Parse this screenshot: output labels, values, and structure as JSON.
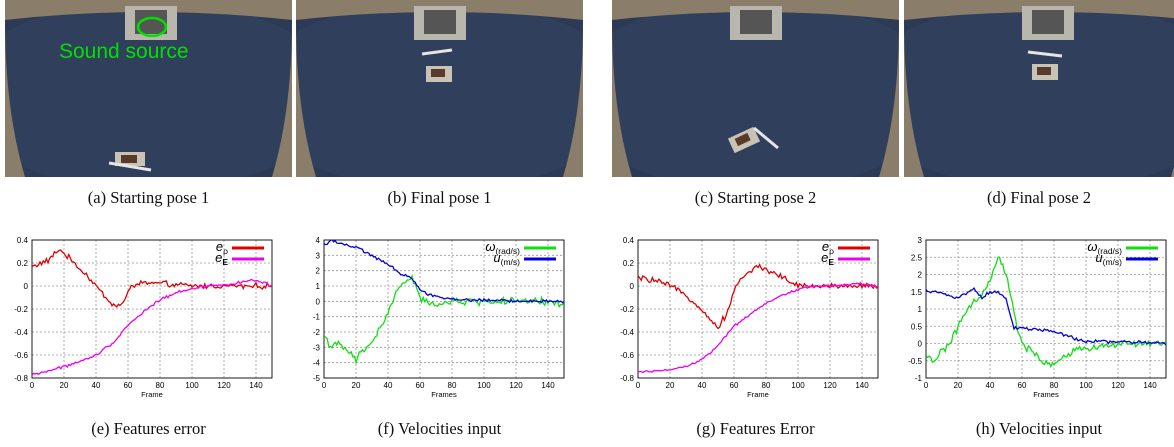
{
  "captions": {
    "a": "(a) Starting pose 1",
    "b": "(b) Final pose 1",
    "c": "(c) Starting pose 2",
    "d": "(d) Final pose 2",
    "e": "(e) Features error",
    "f": "(f) Velocities input",
    "g": "(g) Features Error",
    "h": "(h) Velocities input"
  },
  "annotation": {
    "sound_source": "Sound source",
    "color": "#00e000"
  },
  "colors": {
    "red": "#e00000",
    "magenta": "#ee00ee",
    "green": "#11dd11",
    "blue": "#0000dd",
    "carpet": "#2c3a55"
  },
  "chart_data": [
    {
      "id": "e",
      "type": "line",
      "xlabel": "Frame",
      "xlim": [
        0,
        150
      ],
      "ylim": [
        -0.8,
        0.4
      ],
      "xticks": [
        0,
        20,
        40,
        60,
        80,
        100,
        120,
        140
      ],
      "yticks": [
        -0.8,
        -0.6,
        -0.4,
        -0.2,
        0,
        0.2,
        0.4
      ],
      "yticklabels": [
        "-0.8",
        "-0.6",
        "-0.4",
        "-0.2",
        "0",
        "0.2",
        "0.4"
      ],
      "legend_position": "top-right",
      "series": [
        {
          "name": "e_ρ",
          "color": "#e00000",
          "noise": 0.03,
          "x": [
            0,
            10,
            17,
            25,
            35,
            45,
            52,
            57,
            62,
            70,
            80,
            90,
            100,
            110,
            120,
            130,
            140,
            150
          ],
          "y": [
            0.17,
            0.22,
            0.32,
            0.22,
            0.08,
            -0.08,
            -0.18,
            -0.15,
            0.0,
            0.03,
            0.02,
            0.01,
            0.0,
            0.0,
            0.0,
            0.0,
            0.0,
            0.0
          ]
        },
        {
          "name": "e_E",
          "color": "#ee00ee",
          "noise": 0.015,
          "x": [
            0,
            10,
            20,
            30,
            40,
            50,
            55,
            60,
            70,
            80,
            90,
            100,
            110,
            120,
            130,
            140,
            150
          ],
          "y": [
            -0.77,
            -0.74,
            -0.7,
            -0.66,
            -0.6,
            -0.5,
            -0.42,
            -0.34,
            -0.22,
            -0.12,
            -0.06,
            -0.02,
            0.0,
            0.01,
            0.03,
            0.05,
            0.0
          ]
        }
      ]
    },
    {
      "id": "f",
      "type": "line",
      "xlabel": "Frames",
      "xlim": [
        0,
        150
      ],
      "ylim": [
        -5,
        4
      ],
      "xticks": [
        0,
        20,
        40,
        60,
        80,
        100,
        120,
        140
      ],
      "yticks": [
        -5,
        -4,
        -3,
        -2,
        -1,
        0,
        1,
        2,
        3,
        4
      ],
      "yticklabels": [
        "-5",
        "-4",
        "-3",
        "-2",
        "-1",
        "0",
        "1",
        "2",
        "3",
        "4"
      ],
      "legend_position": "top-right",
      "series": [
        {
          "name": "ω(rad/s)",
          "color": "#11dd11",
          "noise": 0.3,
          "x": [
            0,
            5,
            10,
            20,
            25,
            30,
            35,
            40,
            45,
            50,
            55,
            60,
            65,
            75,
            90,
            110,
            130,
            150
          ],
          "y": [
            -2.2,
            -3.0,
            -2.8,
            -3.8,
            -3.2,
            -2.6,
            -1.8,
            -0.8,
            0.6,
            1.2,
            1.6,
            0.2,
            -0.2,
            -0.1,
            0.0,
            0.0,
            0.0,
            -0.1
          ]
        },
        {
          "name": "u(m/s)",
          "color": "#0000dd",
          "noise": 0.12,
          "x": [
            0,
            5,
            10,
            20,
            30,
            40,
            45,
            50,
            55,
            60,
            65,
            75,
            90,
            110,
            130,
            150
          ],
          "y": [
            3.7,
            4.0,
            3.8,
            3.5,
            3.0,
            2.4,
            2.0,
            1.7,
            1.5,
            0.8,
            0.5,
            0.2,
            0.1,
            0.05,
            0.0,
            0.0
          ]
        }
      ]
    },
    {
      "id": "g",
      "type": "line",
      "xlabel": "Frame",
      "xlim": [
        0,
        150
      ],
      "ylim": [
        -0.8,
        0.4
      ],
      "xticks": [
        0,
        20,
        40,
        60,
        80,
        100,
        120,
        140
      ],
      "yticks": [
        -0.8,
        -0.6,
        -0.4,
        -0.2,
        0,
        0.2,
        0.4
      ],
      "yticklabels": [
        "-0.8",
        "-0.6",
        "-0.4",
        "-0.2",
        "0",
        "0.2",
        "0.4"
      ],
      "legend_position": "top-right",
      "series": [
        {
          "name": "e_ρ",
          "color": "#e00000",
          "noise": 0.03,
          "x": [
            0,
            10,
            20,
            30,
            40,
            45,
            50,
            55,
            60,
            65,
            75,
            80,
            90,
            100,
            110,
            120,
            130,
            140,
            150
          ],
          "y": [
            0.07,
            0.05,
            0.0,
            -0.08,
            -0.2,
            -0.3,
            -0.36,
            -0.25,
            -0.05,
            0.08,
            0.17,
            0.15,
            0.08,
            0.0,
            0.0,
            0.0,
            0.0,
            0.0,
            0.0
          ]
        },
        {
          "name": "e_E",
          "color": "#ee00ee",
          "noise": 0.012,
          "x": [
            0,
            10,
            20,
            30,
            40,
            50,
            55,
            60,
            70,
            80,
            90,
            100,
            110,
            120,
            130,
            140,
            150
          ],
          "y": [
            -0.75,
            -0.74,
            -0.73,
            -0.7,
            -0.64,
            -0.52,
            -0.43,
            -0.35,
            -0.25,
            -0.15,
            -0.08,
            -0.03,
            0.0,
            0.0,
            0.01,
            0.02,
            0.0
          ]
        }
      ]
    },
    {
      "id": "h",
      "type": "line",
      "xlabel": "Frames",
      "xlim": [
        0,
        150
      ],
      "ylim": [
        -1,
        3
      ],
      "xticks": [
        0,
        20,
        40,
        60,
        80,
        100,
        120,
        140
      ],
      "yticks": [
        -1,
        -0.5,
        0,
        0.5,
        1,
        1.5,
        2,
        2.5,
        3
      ],
      "yticklabels": [
        "-1",
        "-0.5",
        "0",
        "0.5",
        "1",
        "1.5",
        "2",
        "2.5",
        "3"
      ],
      "legend_position": "top-right",
      "series": [
        {
          "name": "ω(rad/s)",
          "color": "#11dd11",
          "noise": 0.12,
          "x": [
            0,
            5,
            10,
            15,
            20,
            25,
            30,
            35,
            40,
            45,
            48,
            52,
            55,
            58,
            62,
            70,
            78,
            85,
            95,
            110,
            130,
            150
          ],
          "y": [
            -0.4,
            -0.5,
            -0.2,
            0.0,
            0.5,
            0.9,
            1.2,
            1.4,
            1.8,
            2.5,
            2.3,
            1.6,
            0.9,
            0.2,
            -0.1,
            -0.4,
            -0.65,
            -0.4,
            -0.2,
            -0.05,
            0.0,
            0.0
          ]
        },
        {
          "name": "u(m/s)",
          "color": "#0000dd",
          "noise": 0.06,
          "x": [
            0,
            10,
            20,
            25,
            30,
            35,
            40,
            45,
            50,
            55,
            60,
            70,
            80,
            90,
            100,
            120,
            150
          ],
          "y": [
            1.55,
            1.45,
            1.3,
            1.45,
            1.6,
            1.3,
            1.5,
            1.5,
            1.3,
            0.45,
            0.45,
            0.4,
            0.35,
            0.2,
            0.05,
            0.05,
            0.0
          ]
        }
      ]
    }
  ]
}
